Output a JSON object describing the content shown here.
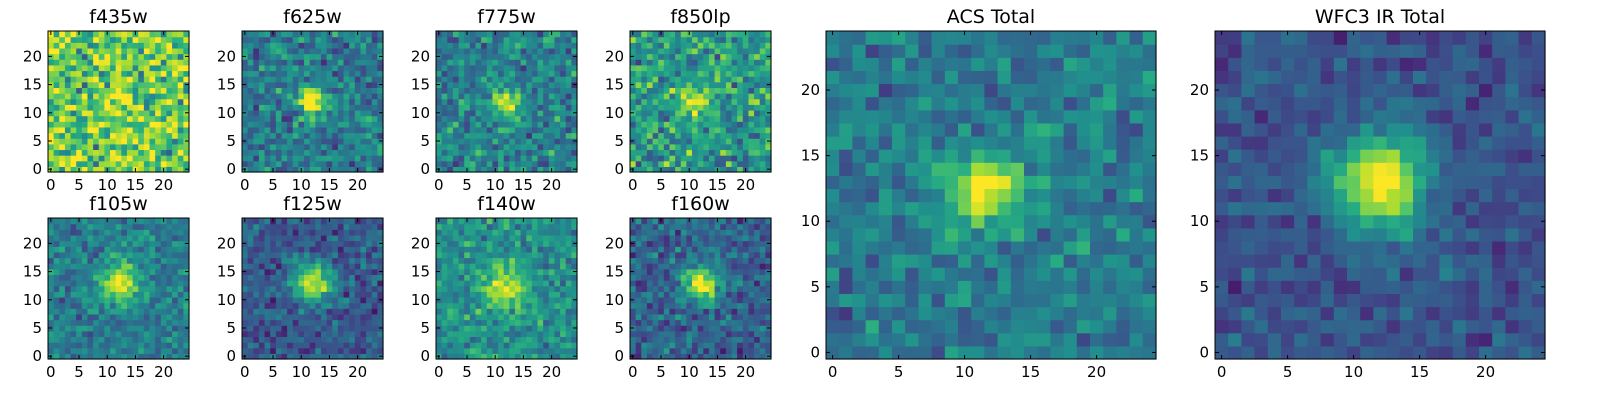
{
  "chart_data": {
    "type": "heatmap",
    "colormap": "viridis",
    "grid_size": 25,
    "x_ticks": [
      0,
      5,
      10,
      15,
      20
    ],
    "y_ticks": [
      0,
      5,
      10,
      15,
      20
    ],
    "panels": [
      {
        "id": "f435w",
        "title": "f435w",
        "source_x": 12,
        "source_y": 13,
        "source_sigma": 2.0,
        "peak": 0.15,
        "background": 0.78,
        "noise": 0.28
      },
      {
        "id": "f625w",
        "title": "f625w",
        "source_x": 12,
        "source_y": 12,
        "source_sigma": 1.8,
        "peak": 0.6,
        "background": 0.42,
        "noise": 0.18
      },
      {
        "id": "f775w",
        "title": "f775w",
        "source_x": 12,
        "source_y": 12,
        "source_sigma": 1.8,
        "peak": 0.55,
        "background": 0.45,
        "noise": 0.18
      },
      {
        "id": "f850lp",
        "title": "f850lp",
        "source_x": 11,
        "source_y": 12,
        "source_sigma": 1.9,
        "peak": 0.4,
        "background": 0.55,
        "noise": 0.22
      },
      {
        "id": "f105w",
        "title": "f105w",
        "source_x": 12,
        "source_y": 13,
        "source_sigma": 2.4,
        "peak": 0.55,
        "background": 0.42,
        "noise": 0.14
      },
      {
        "id": "f125w",
        "title": "f125w",
        "source_x": 12,
        "source_y": 13,
        "source_sigma": 2.4,
        "peak": 0.7,
        "background": 0.28,
        "noise": 0.14
      },
      {
        "id": "f140w",
        "title": "f140w",
        "source_x": 12,
        "source_y": 12,
        "source_sigma": 2.6,
        "peak": 0.45,
        "background": 0.5,
        "noise": 0.15
      },
      {
        "id": "f160w",
        "title": "f160w",
        "source_x": 12,
        "source_y": 13,
        "source_sigma": 2.3,
        "peak": 0.65,
        "background": 0.32,
        "noise": 0.15
      },
      {
        "id": "acs-total",
        "title": "ACS Total",
        "source_x": 11.5,
        "source_y": 12.5,
        "source_sigma": 1.9,
        "peak": 0.62,
        "background": 0.42,
        "noise": 0.14
      },
      {
        "id": "wfc3-ir-total",
        "title": "WFC3 IR Total",
        "source_x": 12,
        "source_y": 13,
        "source_sigma": 2.6,
        "peak": 0.75,
        "background": 0.26,
        "noise": 0.1
      }
    ]
  }
}
